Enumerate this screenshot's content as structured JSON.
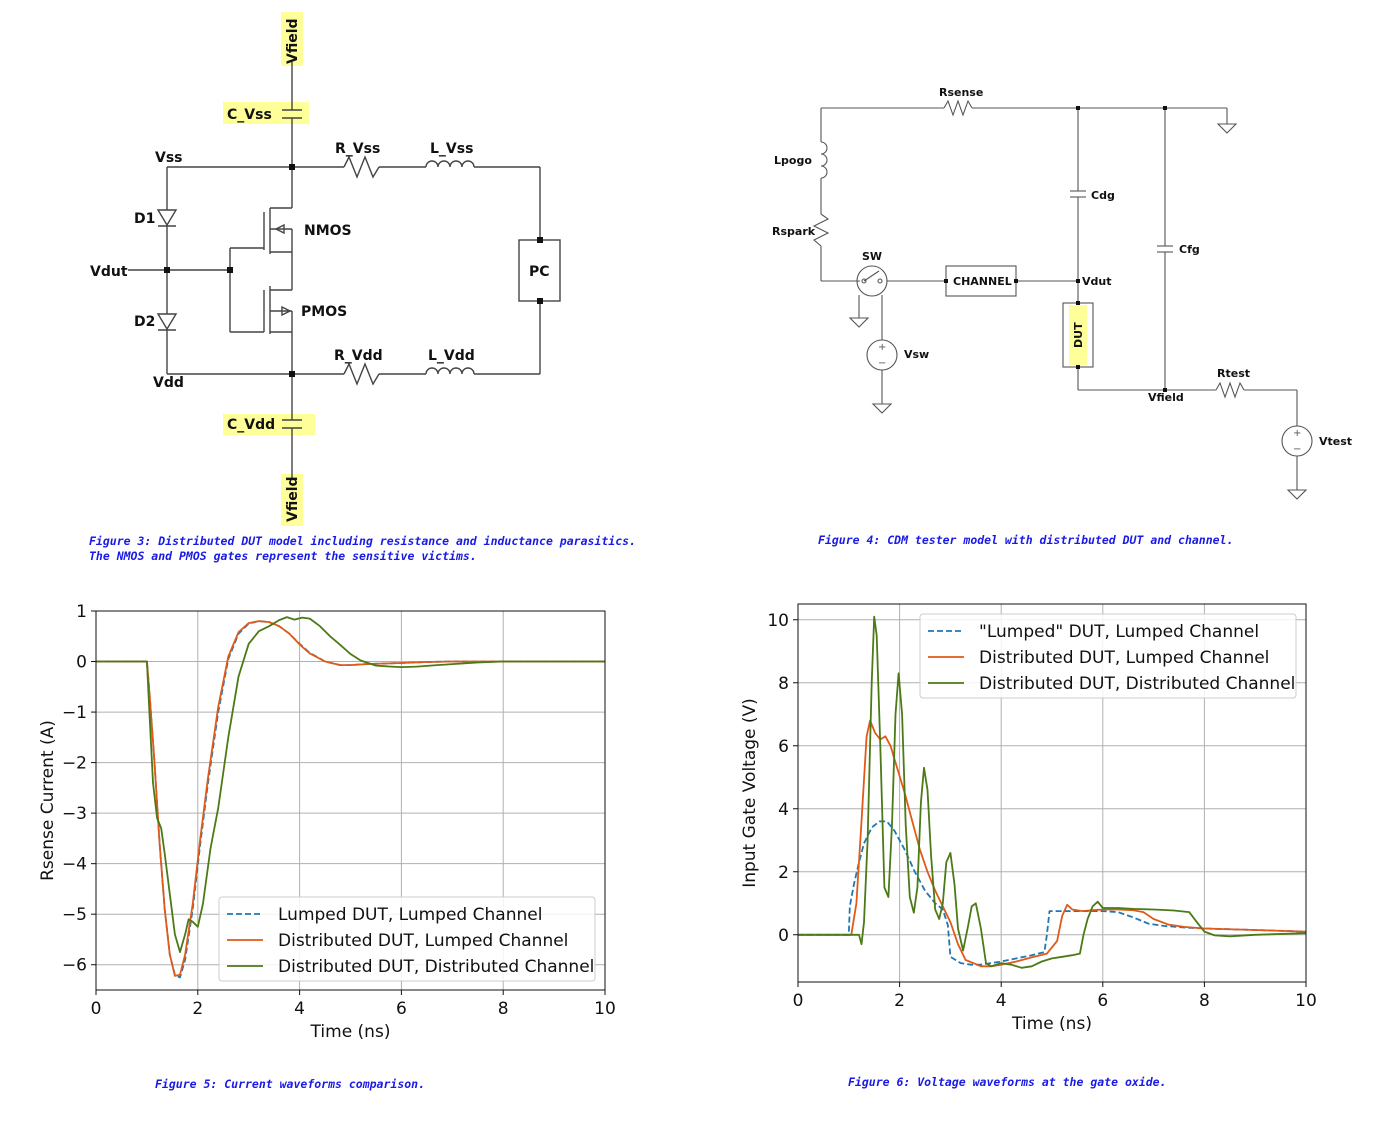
{
  "figure3": {
    "labels": {
      "vfield_top": "Vfield",
      "c_vss": "C_Vss",
      "vss": "Vss",
      "r_vss": "R_Vss",
      "l_vss": "L_Vss",
      "d1": "D1",
      "nmos": "NMOS",
      "vdut": "Vdut",
      "pc": "PC",
      "d2": "D2",
      "pmos": "PMOS",
      "vdd": "Vdd",
      "r_vdd": "R_Vdd",
      "l_vdd": "L_Vdd",
      "c_vdd": "C_Vdd",
      "vfield_bottom": "Vfield"
    },
    "caption_line1": "Figure 3: Distributed DUT model including resistance and inductance parasitics.",
    "caption_line2": "The NMOS and PMOS gates represent the sensitive victims."
  },
  "figure4": {
    "labels": {
      "rsense": "Rsense",
      "lpogo": "Lpogo",
      "cdg": "Cdg",
      "rspark": "Rspark",
      "sw": "SW",
      "channel": "CHANNEL",
      "vdut": "Vdut",
      "cfg": "Cfg",
      "dut": "DUT",
      "vsw": "Vsw",
      "rtest": "Rtest",
      "vfield": "Vfield",
      "vtest": "Vtest"
    },
    "caption": "Figure 4: CDM tester model with distributed DUT and channel."
  },
  "figure5": {
    "caption": "Figure 5: Current waveforms comparison.",
    "chart_data": {
      "type": "line",
      "xlabel": "Time (ns)",
      "ylabel": "Rsense Current (A)",
      "xlim": [
        0,
        10
      ],
      "ylim": [
        -6.5,
        1
      ],
      "xticks": [
        0,
        2,
        4,
        6,
        8,
        10
      ],
      "yticks": [
        1,
        0,
        -1,
        -2,
        -3,
        -4,
        -5,
        -6
      ],
      "ytick_labels": [
        "1",
        "0",
        "−1",
        "−2",
        "−3",
        "−4",
        "−5",
        "−6"
      ],
      "grid": true,
      "legend_position": "lower-right",
      "series": [
        {
          "name": "Lumped DUT, Lumped Channel",
          "color": "#1f77b4",
          "dash": "dashed",
          "x": [
            0,
            1.0,
            1.05,
            1.15,
            1.25,
            1.35,
            1.45,
            1.55,
            1.65,
            1.75,
            1.9,
            2.05,
            2.2,
            2.4,
            2.6,
            2.8,
            3.0,
            3.2,
            3.4,
            3.6,
            3.8,
            4.0,
            4.2,
            4.5,
            4.8,
            5.0,
            5.3,
            5.6,
            6.0,
            6.5,
            7.0,
            7.5,
            8.0,
            10.0
          ],
          "y": [
            0,
            0,
            -0.6,
            -2.0,
            -3.6,
            -4.9,
            -5.8,
            -6.2,
            -6.25,
            -5.9,
            -4.9,
            -3.6,
            -2.4,
            -1.0,
            0.05,
            0.55,
            0.75,
            0.8,
            0.78,
            0.7,
            0.55,
            0.35,
            0.17,
            0.0,
            -0.07,
            -0.07,
            -0.05,
            -0.04,
            -0.03,
            -0.01,
            0.0,
            0.0,
            0.0,
            0.0
          ]
        },
        {
          "name": "Distributed DUT, Lumped Channel",
          "color": "#e05a1a",
          "dash": "solid",
          "x": [
            0,
            1.0,
            1.05,
            1.15,
            1.25,
            1.35,
            1.45,
            1.55,
            1.65,
            1.75,
            1.9,
            2.05,
            2.2,
            2.4,
            2.6,
            2.8,
            3.0,
            3.2,
            3.4,
            3.6,
            3.8,
            4.0,
            4.2,
            4.5,
            4.8,
            5.0,
            5.3,
            5.6,
            6.0,
            6.5,
            7.0,
            7.5,
            8.0,
            10.0
          ],
          "y": [
            0,
            0,
            -0.6,
            -2.0,
            -3.6,
            -4.9,
            -5.8,
            -6.22,
            -6.2,
            -5.8,
            -4.8,
            -3.5,
            -2.3,
            -0.9,
            0.1,
            0.58,
            0.76,
            0.8,
            0.78,
            0.7,
            0.55,
            0.34,
            0.16,
            0.0,
            -0.07,
            -0.07,
            -0.05,
            -0.04,
            -0.03,
            -0.01,
            0.0,
            0.0,
            0.0,
            0.0
          ]
        },
        {
          "name": "Distributed DUT, Distributed Channel",
          "color": "#4b7a16",
          "dash": "solid",
          "x": [
            0,
            1.0,
            1.05,
            1.12,
            1.2,
            1.28,
            1.35,
            1.45,
            1.55,
            1.65,
            1.75,
            1.82,
            1.9,
            2.0,
            2.1,
            2.25,
            2.4,
            2.6,
            2.8,
            3.0,
            3.2,
            3.4,
            3.6,
            3.75,
            3.9,
            4.05,
            4.2,
            4.4,
            4.6,
            4.8,
            5.0,
            5.2,
            5.5,
            5.8,
            6.0,
            6.3,
            6.7,
            7.0,
            7.5,
            8.0,
            10.0
          ],
          "y": [
            0,
            0,
            -1.0,
            -2.4,
            -3.1,
            -3.3,
            -3.8,
            -4.6,
            -5.4,
            -5.75,
            -5.4,
            -5.1,
            -5.15,
            -5.25,
            -4.8,
            -3.7,
            -2.9,
            -1.5,
            -0.3,
            0.35,
            0.6,
            0.7,
            0.82,
            0.88,
            0.83,
            0.87,
            0.85,
            0.7,
            0.5,
            0.33,
            0.15,
            0.02,
            -0.08,
            -0.1,
            -0.11,
            -0.1,
            -0.07,
            -0.05,
            -0.02,
            0.0,
            0.0
          ]
        }
      ]
    }
  },
  "figure6": {
    "caption": "Figure 6: Voltage waveforms at the gate oxide.",
    "chart_data": {
      "type": "line",
      "xlabel": "Time (ns)",
      "ylabel": "Input Gate Voltage (V)",
      "xlim": [
        0,
        10
      ],
      "ylim": [
        -1.5,
        10.5
      ],
      "xticks": [
        0,
        2,
        4,
        6,
        8,
        10
      ],
      "yticks": [
        0,
        2,
        4,
        6,
        8,
        10
      ],
      "grid": true,
      "legend_position": "top-right",
      "series": [
        {
          "name": "\"Lumped\" DUT, Lumped Channel",
          "color": "#1f77b4",
          "dash": "dashed",
          "x": [
            0,
            1.0,
            1.02,
            1.1,
            1.2,
            1.3,
            1.45,
            1.6,
            1.75,
            1.9,
            2.1,
            2.3,
            2.5,
            2.7,
            2.85,
            2.95,
            3.0,
            3.2,
            3.4,
            3.6,
            3.8,
            4.0,
            4.3,
            4.6,
            4.85,
            4.9,
            4.95,
            5.3,
            5.6,
            6.0,
            6.3,
            6.6,
            6.9,
            7.2,
            7.6,
            8.0,
            9.0,
            10.0
          ],
          "y": [
            0,
            0,
            0.9,
            1.6,
            2.3,
            2.9,
            3.4,
            3.6,
            3.6,
            3.3,
            2.7,
            2.0,
            1.4,
            1.0,
            0.8,
            0.3,
            -0.7,
            -0.9,
            -0.95,
            -0.95,
            -0.9,
            -0.85,
            -0.75,
            -0.65,
            -0.55,
            0.0,
            0.75,
            0.75,
            0.75,
            0.75,
            0.72,
            0.55,
            0.35,
            0.28,
            0.23,
            0.2,
            0.15,
            0.1
          ]
        },
        {
          "name": "Distributed DUT, Lumped Channel",
          "color": "#e05a1a",
          "dash": "solid",
          "x": [
            0,
            1.05,
            1.15,
            1.25,
            1.35,
            1.42,
            1.52,
            1.62,
            1.72,
            1.82,
            1.95,
            2.1,
            2.25,
            2.4,
            2.55,
            2.7,
            2.85,
            3.0,
            3.15,
            3.3,
            3.45,
            3.6,
            3.8,
            4.0,
            4.3,
            4.6,
            4.9,
            5.1,
            5.2,
            5.3,
            5.4,
            5.6,
            5.8,
            6.0,
            6.3,
            6.6,
            6.8,
            7.0,
            7.3,
            7.6,
            8.0,
            9.0,
            10.0
          ],
          "y": [
            0,
            0,
            1.0,
            3.6,
            6.3,
            6.8,
            6.4,
            6.2,
            6.3,
            6.0,
            5.3,
            4.5,
            3.6,
            2.7,
            2.0,
            1.4,
            0.9,
            0.4,
            -0.3,
            -0.8,
            -0.9,
            -1.0,
            -1.0,
            -0.95,
            -0.85,
            -0.72,
            -0.6,
            -0.2,
            0.6,
            0.95,
            0.8,
            0.75,
            0.78,
            0.8,
            0.8,
            0.78,
            0.72,
            0.5,
            0.32,
            0.25,
            0.2,
            0.15,
            0.1
          ]
        },
        {
          "name": "Distributed DUT, Distributed Channel",
          "color": "#4b7a16",
          "dash": "solid",
          "x": [
            0,
            1.2,
            1.25,
            1.3,
            1.37,
            1.45,
            1.5,
            1.55,
            1.62,
            1.7,
            1.78,
            1.85,
            1.92,
            1.98,
            2.05,
            2.12,
            2.2,
            2.28,
            2.35,
            2.42,
            2.48,
            2.55,
            2.62,
            2.7,
            2.78,
            2.85,
            2.92,
            3.0,
            3.08,
            3.15,
            3.25,
            3.35,
            3.42,
            3.5,
            3.6,
            3.7,
            3.8,
            4.0,
            4.2,
            4.4,
            4.6,
            4.8,
            5.0,
            5.2,
            5.4,
            5.55,
            5.62,
            5.7,
            5.8,
            5.9,
            6.0,
            6.3,
            6.6,
            7.0,
            7.4,
            7.7,
            7.85,
            8.0,
            8.2,
            8.5,
            9.0,
            10.0
          ],
          "y": [
            0,
            0,
            -0.3,
            0.4,
            3.0,
            8.0,
            10.1,
            9.5,
            6.0,
            1.5,
            1.2,
            3.5,
            7.0,
            8.3,
            7.0,
            3.5,
            1.2,
            0.7,
            1.5,
            4.2,
            5.3,
            4.6,
            2.5,
            0.8,
            0.5,
            1.0,
            2.3,
            2.6,
            1.6,
            0.2,
            -0.5,
            0.3,
            0.9,
            1.0,
            0.2,
            -0.9,
            -1.0,
            -0.9,
            -0.95,
            -1.05,
            -1.0,
            -0.85,
            -0.75,
            -0.7,
            -0.65,
            -0.6,
            0.0,
            0.5,
            0.9,
            1.05,
            0.85,
            0.85,
            0.82,
            0.8,
            0.77,
            0.72,
            0.4,
            0.1,
            -0.02,
            -0.05,
            0.0,
            0.05
          ]
        }
      ]
    }
  }
}
